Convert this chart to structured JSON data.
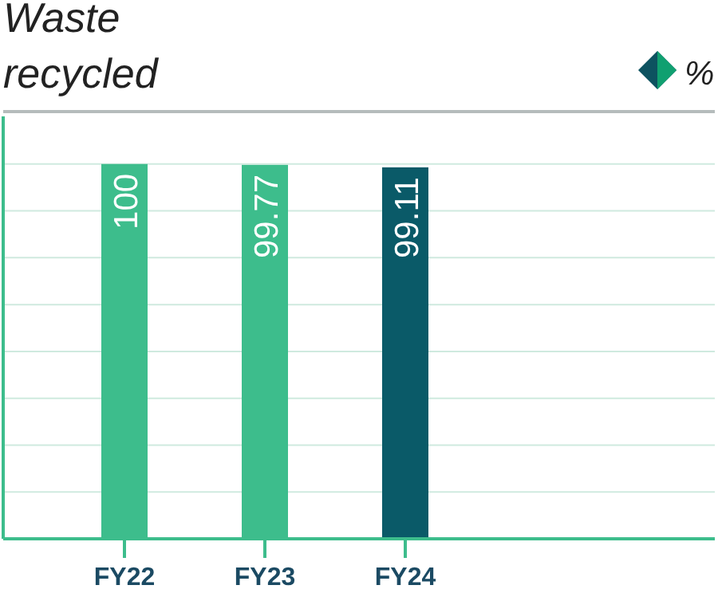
{
  "chart_data": {
    "type": "bar",
    "title": "Waste recycled",
    "annotations": [
      "%"
    ],
    "categories": [
      "FY22",
      "FY23",
      "FY24"
    ],
    "values": [
      100,
      99.77,
      99.11
    ],
    "colors": [
      "#3dbd8c",
      "#3dbd8c",
      "#0a5a68"
    ],
    "data_labels": true,
    "ylim": [
      0,
      114
    ],
    "yticks": [
      {
        "value": 0,
        "label": null
      },
      {
        "value": 12.5,
        "label": null
      },
      {
        "value": 25,
        "label": null
      },
      {
        "value": 37.5,
        "label": null
      },
      {
        "value": 50,
        "label": null
      },
      {
        "value": 62.5,
        "label": null
      },
      {
        "value": 75,
        "label": null
      },
      {
        "value": 87.5,
        "label": null
      },
      {
        "value": 100,
        "label": null
      }
    ],
    "grid": "y",
    "tick_labels": "x"
  }
}
